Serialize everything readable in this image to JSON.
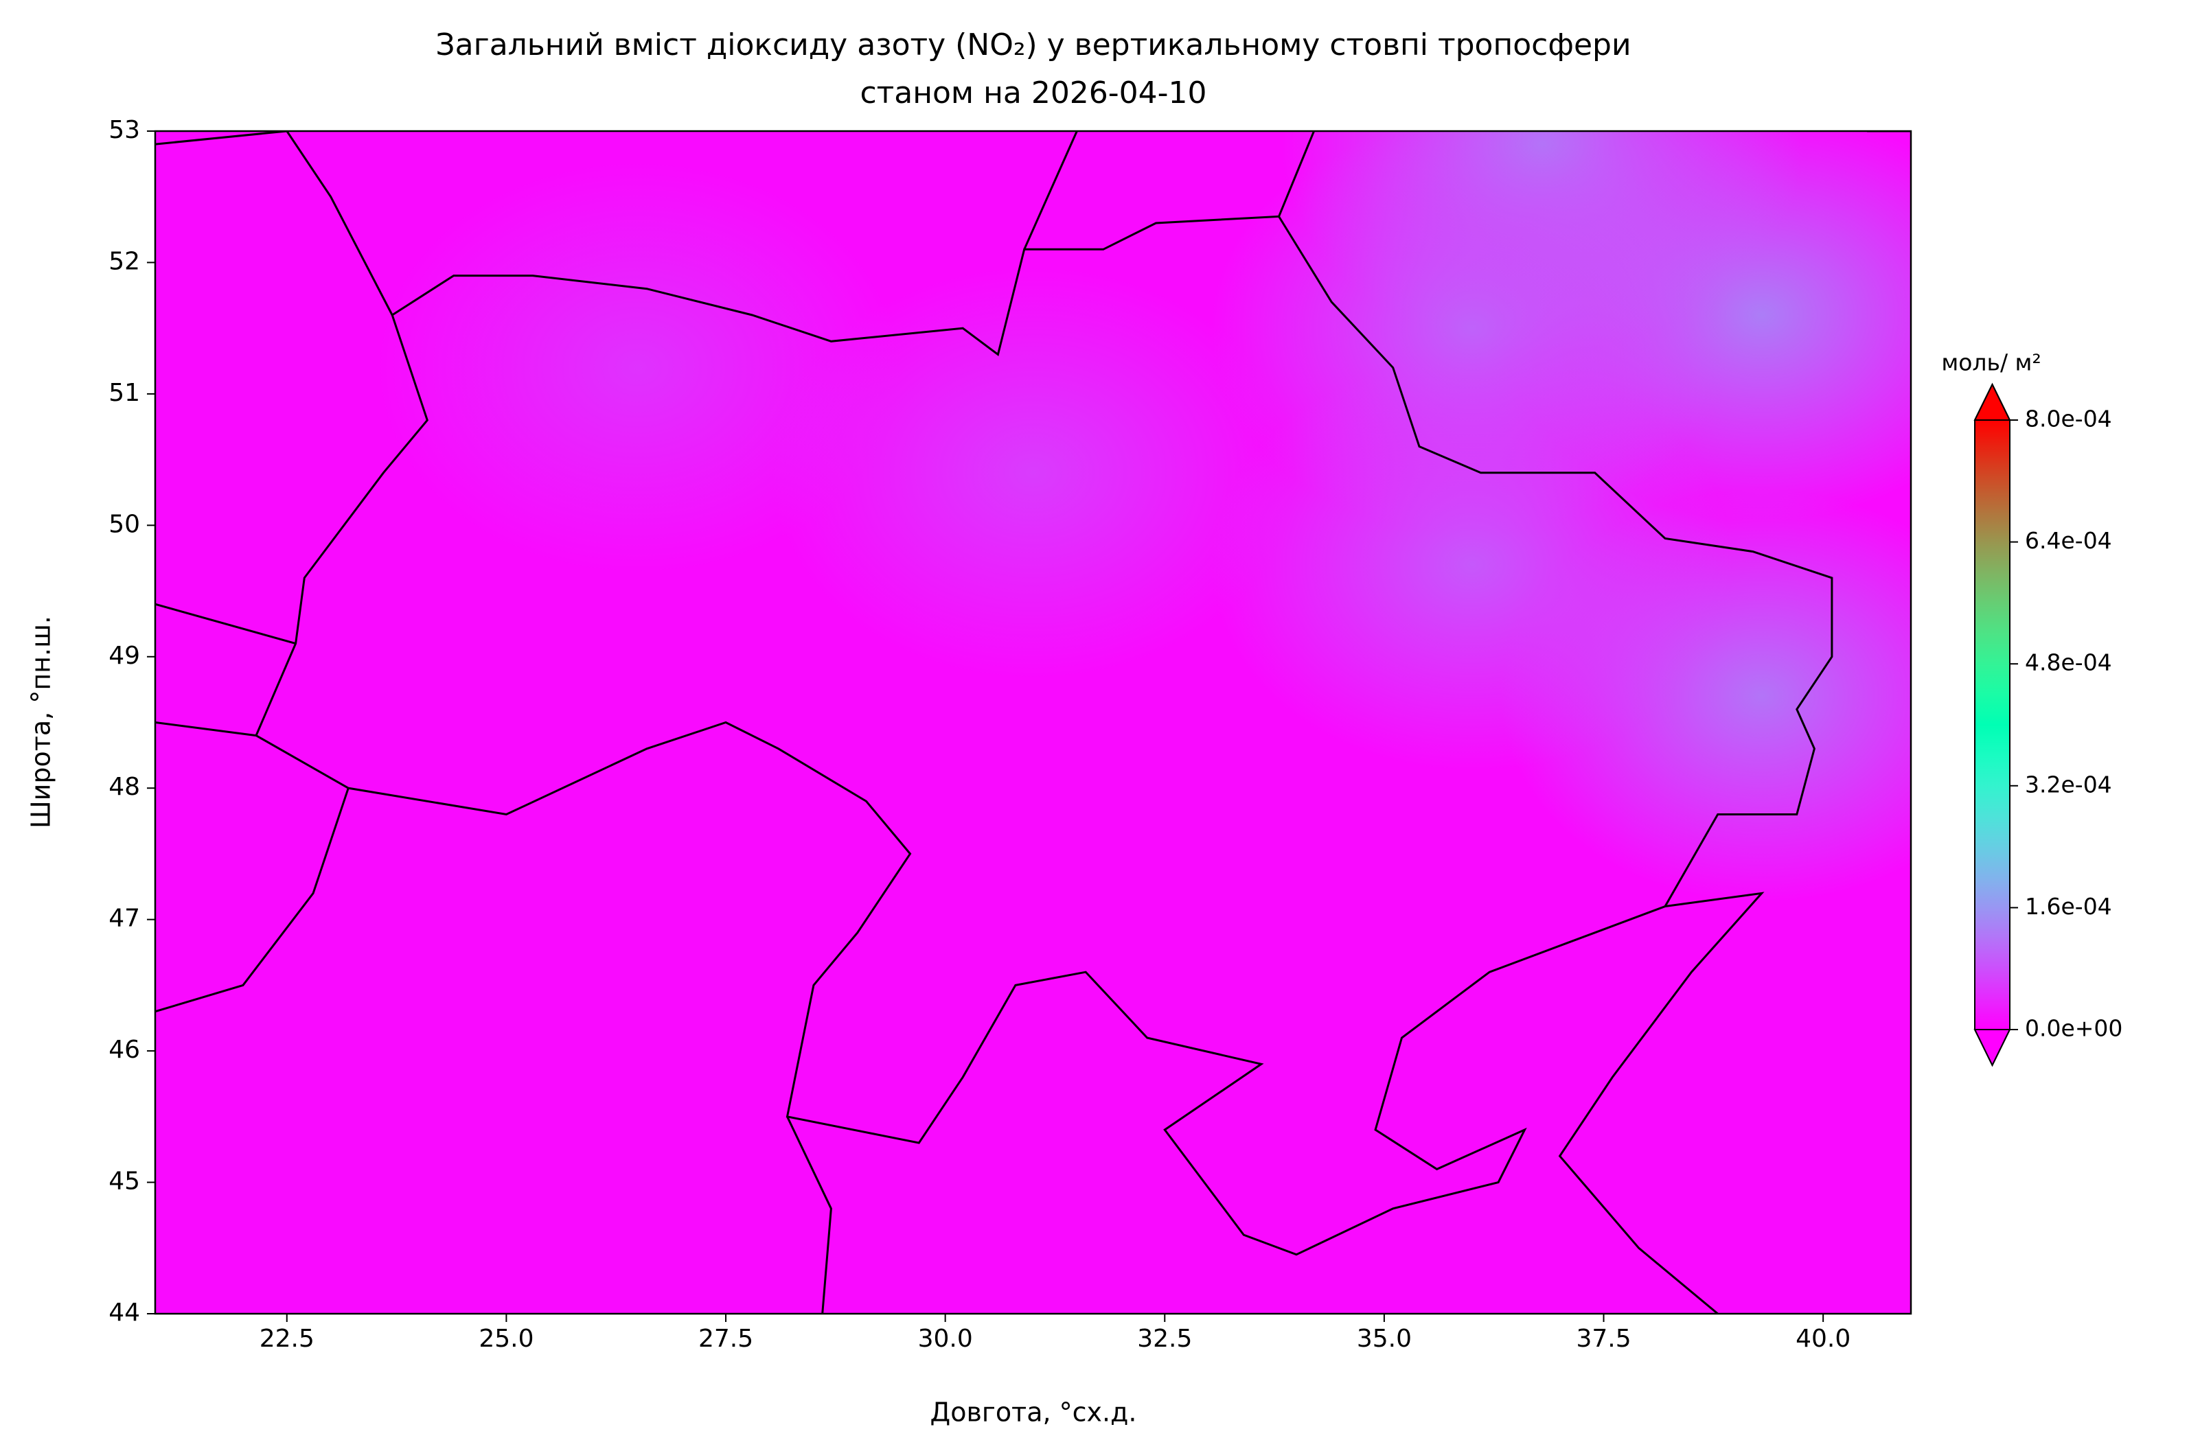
{
  "chart_data": {
    "type": "map",
    "title": [
      "Загальний вміст діоксиду азоту (NO₂) у вертикальному стовпі тропосфери",
      "станом на 2026-04-10"
    ],
    "xlabel": "Довгота, °сх.д.",
    "ylabel": "Широта, °пн.ш.",
    "xlim": [
      21,
      41
    ],
    "ylim": [
      44,
      53
    ],
    "xticks": [
      22.5,
      25.0,
      27.5,
      30.0,
      32.5,
      35.0,
      37.5,
      40.0
    ],
    "yticks": [
      44,
      45,
      46,
      47,
      48,
      49,
      50,
      51,
      52,
      53
    ],
    "colormap": "rainbow",
    "clim": [
      0,
      0.0008
    ],
    "colorbar_label": "моль/ м²",
    "colorbar_ticks": [
      {
        "value": 0,
        "label": "0.0e+00"
      },
      {
        "value": 0.00016,
        "label": "1.6e-04"
      },
      {
        "value": 0.00032,
        "label": "3.2e-04"
      },
      {
        "value": 0.00048,
        "label": "4.8e-04"
      },
      {
        "value": 0.00064,
        "label": "6.4e-04"
      },
      {
        "value": 0.0008,
        "label": "8.0e-04"
      }
    ],
    "base_value": 1e-05,
    "hotspots": [
      {
        "lon": 39.3,
        "lat": 51.6,
        "value": 0.00013
      },
      {
        "lon": 39.3,
        "lat": 48.7,
        "value": 0.00012
      },
      {
        "lon": 36.8,
        "lat": 52.9,
        "value": 0.00012
      },
      {
        "lon": 36.0,
        "lat": 51.5,
        "value": 0.0001
      },
      {
        "lon": 36.0,
        "lat": 49.7,
        "value": 9e-05
      },
      {
        "lon": 31.0,
        "lat": 50.4,
        "value": 6e-05
      },
      {
        "lon": 26.5,
        "lat": 51.2,
        "value": 5e-05
      }
    ]
  }
}
